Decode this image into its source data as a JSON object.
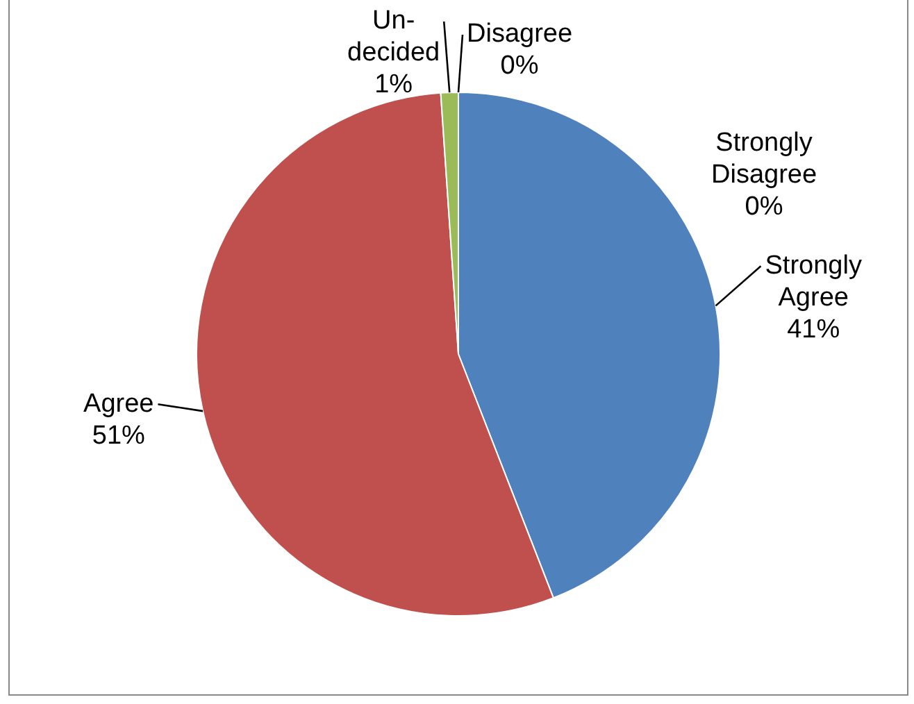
{
  "chart_data": {
    "type": "pie",
    "categories": [
      "Strongly Agree",
      "Agree",
      "Un-decided",
      "Disagree",
      "Strongly Disagree"
    ],
    "values": [
      41,
      51,
      1,
      0,
      0
    ],
    "value_labels": [
      "41%",
      "51%",
      "1%",
      "0%",
      "0%"
    ],
    "colors": [
      "#4f81bd",
      "#c0504d",
      "#9bbb59",
      "#8064a2",
      "#4bacc6"
    ],
    "legend": false
  }
}
